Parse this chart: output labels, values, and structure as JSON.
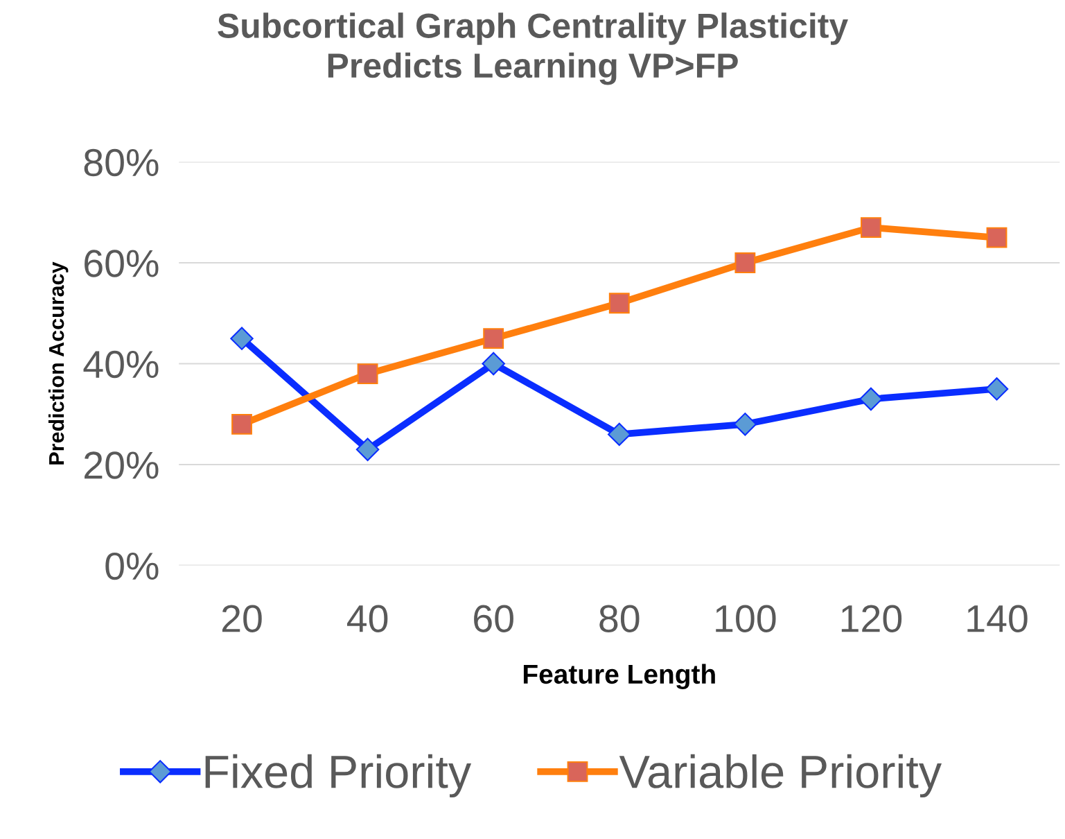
{
  "chart_data": {
    "type": "line",
    "title": "Subcortical Graph Centrality Plasticity\nPredicts Learning VP>FP",
    "xlabel": "Feature Length",
    "ylabel": "Prediction Accuracy",
    "categories": [
      "20",
      "40",
      "60",
      "80",
      "100",
      "120",
      "140"
    ],
    "series": [
      {
        "name": "Fixed Priority",
        "color": "#0a2dff",
        "marker": "diamond",
        "values": [
          45,
          23,
          40,
          26,
          28,
          33,
          35
        ]
      },
      {
        "name": "Variable Priority",
        "color": "#ff7f0e",
        "marker": "square",
        "values": [
          28,
          38,
          45,
          52,
          60,
          67,
          65
        ]
      }
    ],
    "ylim": [
      0,
      80
    ],
    "yticks": [
      {
        "value": 0,
        "label": "0%"
      },
      {
        "value": 20,
        "label": "20%"
      },
      {
        "value": 40,
        "label": "40%"
      },
      {
        "value": 60,
        "label": "60%"
      },
      {
        "value": 80,
        "label": "80%"
      }
    ],
    "grid": "y",
    "legend": "bottom",
    "line_style": "solid"
  }
}
